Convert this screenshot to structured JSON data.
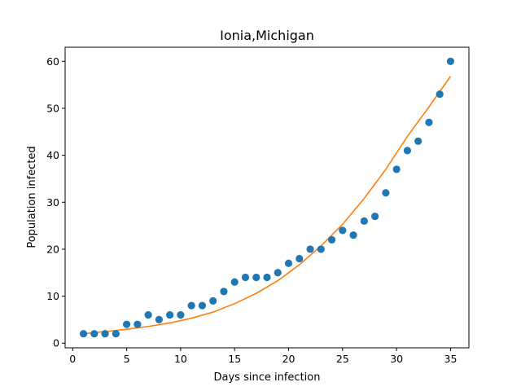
{
  "chart_data": {
    "type": "scatter",
    "title": "Ionia,Michigan",
    "xlabel": "Days since infection",
    "ylabel": "Population infected",
    "xlim": [
      -0.7,
      36.7
    ],
    "ylim": [
      -1,
      63
    ],
    "xticks": [
      0,
      5,
      10,
      15,
      20,
      25,
      30,
      35
    ],
    "yticks": [
      0,
      10,
      20,
      30,
      40,
      50,
      60
    ],
    "grid": false,
    "series": [
      {
        "kind": "scatter",
        "color": "#1f77b4",
        "x": [
          1,
          2,
          3,
          4,
          5,
          6,
          7,
          8,
          9,
          10,
          11,
          12,
          13,
          14,
          15,
          16,
          17,
          18,
          19,
          20,
          21,
          22,
          23,
          24,
          25,
          26,
          27,
          28,
          29,
          30,
          31,
          32,
          33,
          34,
          35
        ],
        "y": [
          2,
          2,
          2,
          2,
          4,
          4,
          6,
          5,
          6,
          6,
          8,
          8,
          9,
          11,
          13,
          14,
          14,
          14,
          15,
          17,
          18,
          20,
          20,
          22,
          24,
          23,
          26,
          27,
          32,
          37,
          41,
          43,
          47,
          53,
          60
        ]
      },
      {
        "kind": "line",
        "color": "#ff7f0e",
        "x": [
          1,
          3,
          5,
          7,
          9,
          11,
          13,
          15,
          17,
          19,
          21,
          23,
          25,
          27,
          29,
          31,
          33,
          35
        ],
        "y": [
          2.0,
          2.45,
          2.95,
          3.55,
          4.3,
          5.3,
          6.6,
          8.4,
          10.6,
          13.3,
          16.7,
          20.7,
          25.3,
          30.8,
          37.0,
          44.0,
          50.3,
          56.8
        ]
      }
    ]
  }
}
